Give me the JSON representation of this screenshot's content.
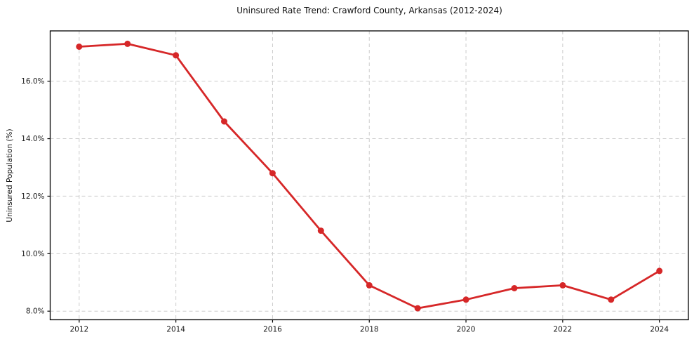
{
  "page": {
    "background": "#ffffff"
  },
  "chart_data": {
    "type": "line",
    "title": "Uninsured Rate Trend: Crawford County, Arkansas (2012-2024)",
    "xlabel": "",
    "ylabel": "Uninsured Population (%)",
    "x": [
      2012,
      2013,
      2014,
      2015,
      2016,
      2017,
      2018,
      2019,
      2020,
      2021,
      2022,
      2023,
      2024
    ],
    "values": [
      17.2,
      17.3,
      16.9,
      14.6,
      12.8,
      10.8,
      8.9,
      8.1,
      8.4,
      8.8,
      8.9,
      8.4,
      9.4
    ],
    "xticks": {
      "values": [
        2012,
        2014,
        2016,
        2018,
        2020,
        2022,
        2024
      ],
      "labels": [
        "2012",
        "2014",
        "2016",
        "2018",
        "2020",
        "2022",
        "2024"
      ]
    },
    "yticks": {
      "values": [
        8,
        10,
        12,
        14,
        16
      ],
      "labels": [
        "8.0%",
        "10.0%",
        "12.0%",
        "14.0%",
        "16.0%"
      ]
    },
    "xlim": [
      2011.4,
      2024.6
    ],
    "ylim": [
      7.7,
      17.75
    ],
    "grid": true,
    "grid_style": "dashed",
    "legend": false,
    "line_color": "#d62728",
    "marker": "circle",
    "grid_color": "#cccccc",
    "axis_color": "#000000"
  }
}
